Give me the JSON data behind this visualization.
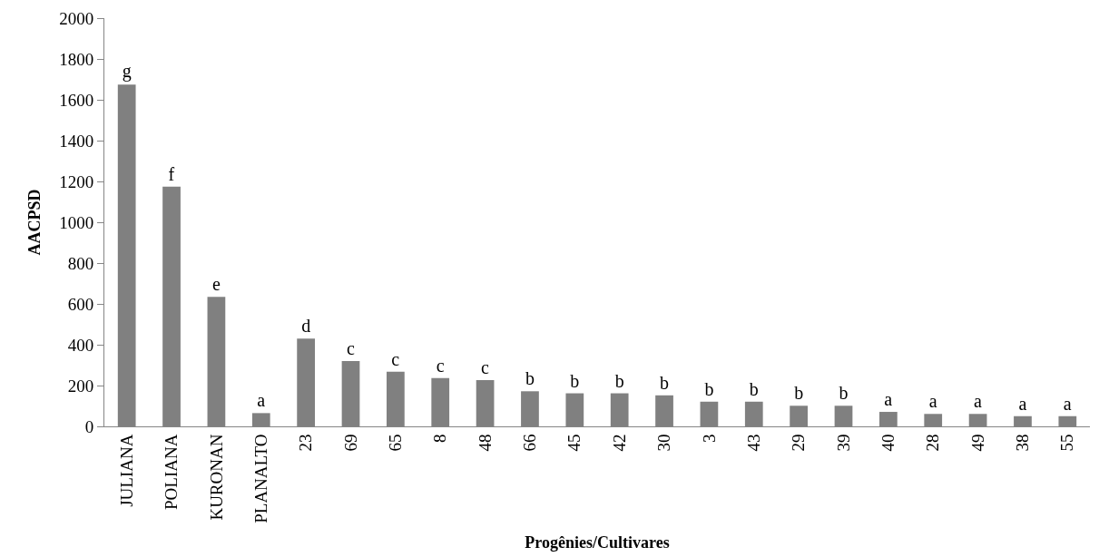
{
  "chart_data": {
    "type": "bar",
    "xlabel": "Progênies/Cultivares",
    "ylabel": "AACPSD",
    "categories": [
      "JULIANA",
      "POLIANA",
      "KURONAN",
      "PLANALTO",
      "23",
      "69",
      "65",
      "8",
      "48",
      "66",
      "45",
      "42",
      "30",
      "3",
      "43",
      "29",
      "39",
      "40",
      "28",
      "49",
      "38",
      "55"
    ],
    "values": [
      1675,
      1175,
      635,
      65,
      430,
      320,
      268,
      237,
      227,
      172,
      162,
      162,
      152,
      121,
      121,
      101,
      101,
      71,
      61,
      61,
      50,
      50
    ],
    "value_labels": [
      "g",
      "f",
      "e",
      "a",
      "d",
      "c",
      "c",
      "c",
      "c",
      "b",
      "b",
      "b",
      "b",
      "b",
      "b",
      "b",
      "b",
      "a",
      "a",
      "a",
      "a",
      "a"
    ],
    "color": "#808080",
    "ylim": [
      0,
      2000
    ],
    "yticks": [
      0,
      200,
      400,
      600,
      800,
      1000,
      1200,
      1400,
      1600,
      1800,
      2000
    ]
  }
}
